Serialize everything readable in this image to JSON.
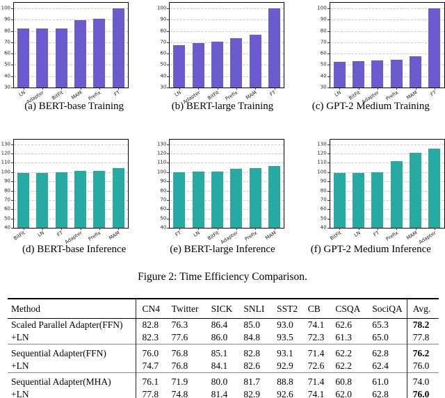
{
  "figure": {
    "caption": "Figure 2: Time Efficiency Comparison."
  },
  "chart_data": [
    {
      "type": "bar",
      "title": "(a) BERT-base Training",
      "categories": [
        "LN",
        "Adapter",
        "BitFit",
        "MAM",
        "Prefix",
        "FT"
      ],
      "values": [
        82,
        82.5,
        82.5,
        89.5,
        90.8,
        100
      ],
      "ylim": [
        30,
        100
      ],
      "ytick_step": 10,
      "grid": true,
      "bar_color": "#6a5ccf"
    },
    {
      "type": "bar",
      "title": "(b) BERT-large Training",
      "categories": [
        "LN",
        "Adapter",
        "BitFit",
        "Prefix",
        "MAM",
        "FT"
      ],
      "values": [
        67.8,
        69.2,
        70.5,
        73.7,
        77,
        100
      ],
      "ylim": [
        30,
        100
      ],
      "ytick_step": 10,
      "grid": true,
      "bar_color": "#6a5ccf"
    },
    {
      "type": "bar",
      "title": "(c) GPT-2 Medium Training",
      "categories": [
        "LN",
        "BitFit",
        "Adapter",
        "Prefix",
        "MAM",
        "FT"
      ],
      "values": [
        52.5,
        53.2,
        54,
        54.6,
        57.5,
        100
      ],
      "ylim": [
        30,
        100
      ],
      "ytick_step": 10,
      "grid": true,
      "bar_color": "#6a5ccf"
    },
    {
      "type": "bar",
      "title": "(d) BERT-base Inference",
      "categories": [
        "BitFit",
        "LN",
        "FT",
        "Adapter",
        "Prefix",
        "MAM"
      ],
      "values": [
        99,
        99,
        100,
        101,
        101,
        104
      ],
      "ylim": [
        40,
        130
      ],
      "ytick_step": 10,
      "grid": true,
      "bar_color": "#27aaa2"
    },
    {
      "type": "bar",
      "title": "(e) BERT-large Inference",
      "categories": [
        "FT",
        "LN",
        "BitFit",
        "Adapter",
        "Prefix",
        "MAM"
      ],
      "values": [
        100,
        100.5,
        100.5,
        103.7,
        104.6,
        106.5
      ],
      "ylim": [
        40,
        130
      ],
      "ytick_step": 10,
      "grid": true,
      "bar_color": "#27aaa2"
    },
    {
      "type": "bar",
      "title": "(f) GPT-2 Medium Inference",
      "categories": [
        "BitFit",
        "LN",
        "FT",
        "Prefix",
        "MAM",
        "Adapter"
      ],
      "values": [
        99,
        99,
        100,
        112,
        121,
        125
      ],
      "ylim": [
        40,
        130
      ],
      "ytick_step": 10,
      "grid": true,
      "bar_color": "#27aaa2"
    }
  ],
  "table": {
    "headers": [
      "Method",
      "CN4",
      "Twitter",
      "SICK",
      "SNLI",
      "SST2",
      "CB",
      "CSQA",
      "SociQA",
      "Avg."
    ],
    "rows": [
      {
        "method": "Scaled Parallel Adapter(FFN)",
        "values": [
          "82.8",
          "76.3",
          "86.4",
          "85.0",
          "93.0",
          "74.1",
          "62.6",
          "65.3"
        ],
        "avg": "78.2",
        "avg_bold": true,
        "group_start": true
      },
      {
        "method": "+LN",
        "values": [
          "82.3",
          "77.6",
          "86.0",
          "84.8",
          "93.5",
          "72.3",
          "61.3",
          "65.0"
        ],
        "avg": "77.8",
        "avg_bold": false,
        "group_start": false
      },
      {
        "method": "Sequential Adapter(FFN)",
        "values": [
          "76.0",
          "76.8",
          "85.1",
          "82.8",
          "93.1",
          "71.4",
          "62.2",
          "62.8"
        ],
        "avg": "76.2",
        "avg_bold": true,
        "group_start": true
      },
      {
        "method": "+LN",
        "values": [
          "74.7",
          "76.8",
          "84.1",
          "82.6",
          "92.9",
          "72.6",
          "62.2",
          "62.4"
        ],
        "avg": "76.0",
        "avg_bold": false,
        "group_start": false
      },
      {
        "method": "Sequential Adapter(MHA)",
        "values": [
          "76.1",
          "71.9",
          "80.0",
          "81.7",
          "88.8",
          "71.4",
          "60.8",
          "61.0"
        ],
        "avg": "74.0",
        "avg_bold": false,
        "group_start": true
      },
      {
        "method": "+LN",
        "values": [
          "77.8",
          "74.8",
          "81.4",
          "82.9",
          "92.6",
          "74.1",
          "62.0",
          "62.8"
        ],
        "avg": "76.0",
        "avg_bold": true,
        "group_start": false
      }
    ]
  }
}
